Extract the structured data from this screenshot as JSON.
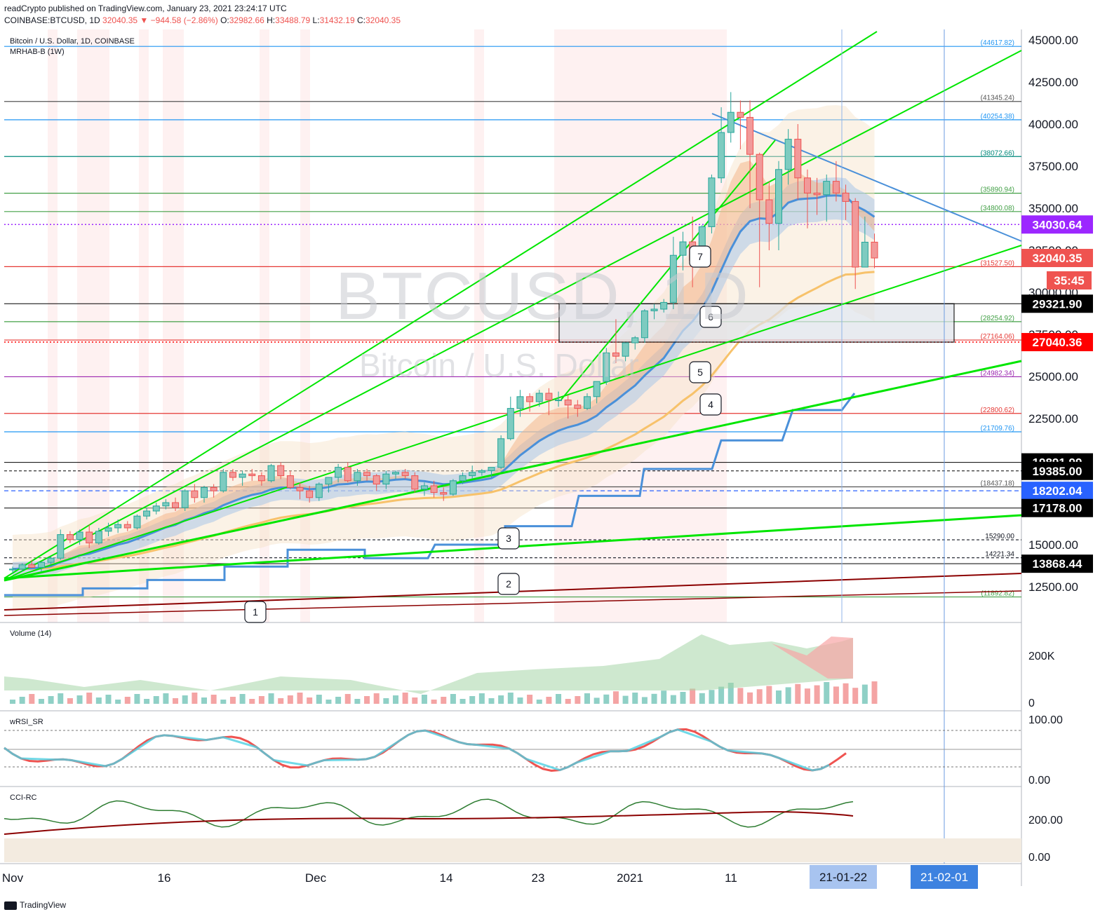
{
  "header": {
    "publisher": "readCrypto published on TradingView.com, January 23, 2021 23:24:17 UTC",
    "symbol": "COINBASE:BTCUSD, 1D",
    "change": "32040.35 ▼ −944.58 (−2.86%)",
    "o_label": "O:",
    "o_value": "32982.66",
    "h_label": "H:",
    "h_value": "33488.79",
    "l_label": "L:",
    "l_value": "31432.19",
    "c_label": "C:",
    "c_value": "32040.35"
  },
  "legend": {
    "title": "Bitcoin / U.S. Dollar, 1D, COINBASE",
    "indicator": "MRHAB-B (1W)"
  },
  "watermark": {
    "ticker": "BTCUSD, 1D",
    "name": "Bitcoin / U.S. Dollar"
  },
  "panes": {
    "volume": "Volume (14)",
    "rsi": "wRSI_SR",
    "cci": "CCI-RC"
  },
  "footer": {
    "brand": "TradingView"
  },
  "colors": {
    "up": "#26a69a",
    "down": "#ef5350",
    "green_line": "#00e600",
    "blue_line": "#4a90d9",
    "orange_line": "#f7c26b",
    "dark_red": "#8b0000",
    "purple": "#9c27b0",
    "red_level": "#e53935"
  },
  "chart_data": {
    "type": "candlestick",
    "y_axis": {
      "ylim": [
        10000,
        46000
      ],
      "ticks": [
        12500,
        15000,
        17500,
        20000,
        22500,
        25000,
        27500,
        30000,
        32500,
        35000,
        37500,
        40000,
        42500,
        45000
      ],
      "tick_labels": [
        "12500.00",
        "15000.00",
        "17500.00",
        "20000.00",
        "22500.00",
        "25000.00",
        "27500.00",
        "30000.00",
        "32500.00",
        "35000.00",
        "37500.00",
        "40000.00",
        "42500.00",
        "45000.00"
      ]
    },
    "x_axis": {
      "labels": [
        "Nov",
        "16",
        "Dec",
        "14",
        "23",
        "2021",
        "11"
      ],
      "highlight": [
        "21-01-22",
        "21-02-01"
      ]
    },
    "level_labels": [
      {
        "text": "(44617.82)",
        "value": 44617.82,
        "color": "#2196f3"
      },
      {
        "text": "(41345.24)",
        "value": 41345.24,
        "color": "#555555"
      },
      {
        "text": "(40254.38)",
        "value": 40254.38,
        "color": "#2196f3"
      },
      {
        "text": "(38072.66)",
        "value": 38072.66,
        "color": "#00897b"
      },
      {
        "text": "(35890.94)",
        "value": 35890.94,
        "color": "#43a047"
      },
      {
        "text": "(34800.08)",
        "value": 34800.08,
        "color": "#43a047"
      },
      {
        "text": "(31527.50)",
        "value": 31527.5,
        "color": "#e53935"
      },
      {
        "text": "(28254.92)",
        "value": 28254.92,
        "color": "#43a047"
      },
      {
        "text": "(27164.06)",
        "value": 27164.06,
        "color": "#e53935"
      },
      {
        "text": "(24982.34)",
        "value": 24982.34,
        "color": "#9c27b0"
      },
      {
        "text": "(22800.62)",
        "value": 22800.62,
        "color": "#e53935"
      },
      {
        "text": "(21709.76)",
        "value": 21709.76,
        "color": "#2196f3"
      },
      {
        "text": "(18437.18)",
        "value": 18437.18,
        "color": "#555555"
      },
      {
        "text": "15290.00",
        "value": 15290.0,
        "color": "#131722"
      },
      {
        "text": "14221.34",
        "value": 14221.34,
        "color": "#131722"
      },
      {
        "text": "(11892.82)",
        "value": 11892.82,
        "color": "#43a047"
      }
    ],
    "price_tags": [
      {
        "text": "34030.64",
        "value": 34030.64,
        "bg": "#9c27ff",
        "fg": "#ffffff"
      },
      {
        "text": "32040.35",
        "value": 32040.35,
        "bg": "#ef5350",
        "fg": "#ffffff"
      },
      {
        "text": "35:45",
        "value": 30850,
        "bg": "#ef5350",
        "fg": "#ffffff"
      },
      {
        "text": "29321.90",
        "value": 29321.9,
        "bg": "#000000",
        "fg": "#ffffff"
      },
      {
        "text": "27040.36",
        "value": 27040.36,
        "bg": "#ff0000",
        "fg": "#ffffff"
      },
      {
        "text": "19891.99",
        "value": 19891.99,
        "bg": "#000000",
        "fg": "#ffffff"
      },
      {
        "text": "19385.00",
        "value": 19385.0,
        "bg": "#000000",
        "fg": "#ffffff"
      },
      {
        "text": "18202.04",
        "value": 18202.04,
        "bg": "#2962ff",
        "fg": "#ffffff"
      },
      {
        "text": "17178.00",
        "value": 17178.0,
        "bg": "#000000",
        "fg": "#ffffff"
      },
      {
        "text": "13868.44",
        "value": 13868.44,
        "bg": "#000000",
        "fg": "#ffffff"
      }
    ],
    "candles": [
      [
        13500,
        13700,
        13300,
        13550
      ],
      [
        13550,
        13900,
        13400,
        13800
      ],
      [
        13800,
        14100,
        13600,
        13650
      ],
      [
        13650,
        14000,
        13400,
        13950
      ],
      [
        13950,
        14300,
        13800,
        14200
      ],
      [
        14200,
        15900,
        14100,
        15600
      ],
      [
        15600,
        15800,
        15100,
        15300
      ],
      [
        15300,
        15900,
        15000,
        15750
      ],
      [
        15750,
        16200,
        14800,
        15100
      ],
      [
        15100,
        16000,
        15000,
        15800
      ],
      [
        15800,
        16300,
        15500,
        16000
      ],
      [
        16000,
        16500,
        15700,
        16200
      ],
      [
        16200,
        16400,
        15800,
        16000
      ],
      [
        16000,
        16800,
        15900,
        16700
      ],
      [
        16700,
        17200,
        16500,
        17000
      ],
      [
        17000,
        17500,
        16800,
        17300
      ],
      [
        17300,
        17700,
        17100,
        17500
      ],
      [
        17500,
        17800,
        17000,
        17200
      ],
      [
        17200,
        18300,
        17000,
        18200
      ],
      [
        18200,
        18600,
        17500,
        17800
      ],
      [
        17800,
        18500,
        17500,
        18400
      ],
      [
        18400,
        18600,
        17800,
        18200
      ],
      [
        18200,
        19500,
        18100,
        19300
      ],
      [
        19300,
        19500,
        18800,
        19000
      ],
      [
        19000,
        19400,
        18500,
        19200
      ],
      [
        19200,
        19500,
        18800,
        19100
      ],
      [
        19100,
        19300,
        18500,
        18800
      ],
      [
        18800,
        19800,
        18700,
        19700
      ],
      [
        19700,
        19900,
        18900,
        19100
      ],
      [
        19100,
        19400,
        18300,
        18400
      ],
      [
        18400,
        18700,
        17700,
        18200
      ],
      [
        18200,
        18500,
        17500,
        17800
      ],
      [
        17800,
        18700,
        17600,
        18600
      ],
      [
        18600,
        19000,
        18100,
        19000
      ],
      [
        19000,
        19800,
        18700,
        19600
      ],
      [
        19600,
        19900,
        18700,
        18800
      ],
      [
        18800,
        19500,
        18500,
        19300
      ],
      [
        19300,
        19500,
        18800,
        19100
      ],
      [
        19100,
        19200,
        18200,
        18600
      ],
      [
        18600,
        19400,
        18300,
        19200
      ],
      [
        19200,
        19400,
        18900,
        19300
      ],
      [
        19300,
        19500,
        18900,
        19100
      ],
      [
        19100,
        19300,
        18100,
        18300
      ],
      [
        18300,
        18700,
        17900,
        18500
      ],
      [
        18500,
        18800,
        17800,
        18100
      ],
      [
        18100,
        18400,
        17600,
        18000
      ],
      [
        18000,
        18900,
        17900,
        18800
      ],
      [
        18800,
        19300,
        18600,
        19100
      ],
      [
        19100,
        19700,
        18900,
        19300
      ],
      [
        19300,
        19500,
        19100,
        19400
      ],
      [
        19400,
        19600,
        19000,
        19600
      ],
      [
        19600,
        21500,
        19500,
        21300
      ],
      [
        21300,
        23800,
        21200,
        23100
      ],
      [
        23100,
        24200,
        22600,
        23800
      ],
      [
        23800,
        24000,
        22900,
        23500
      ],
      [
        23500,
        24200,
        23200,
        24000
      ],
      [
        24000,
        24300,
        22700,
        23600
      ],
      [
        23600,
        24100,
        23200,
        23600
      ],
      [
        23600,
        23900,
        22500,
        23300
      ],
      [
        23300,
        23600,
        22600,
        23100
      ],
      [
        23100,
        24000,
        23000,
        23800
      ],
      [
        23800,
        24500,
        23400,
        24700
      ],
      [
        24700,
        26700,
        24500,
        26400
      ],
      [
        26400,
        28400,
        25800,
        26200
      ],
      [
        26200,
        27000,
        25900,
        27000
      ],
      [
        27000,
        27400,
        26600,
        27300
      ],
      [
        27300,
        29000,
        27000,
        28900
      ],
      [
        28900,
        29300,
        28400,
        29000
      ],
      [
        29000,
        29600,
        28800,
        29400
      ],
      [
        29400,
        33300,
        29000,
        32200
      ],
      [
        32200,
        33600,
        31300,
        33000
      ],
      [
        33000,
        34500,
        30300,
        31900
      ],
      [
        31900,
        34000,
        31500,
        33900
      ],
      [
        33900,
        37000,
        33500,
        36800
      ],
      [
        36800,
        41000,
        36500,
        39500
      ],
      [
        39500,
        41900,
        38900,
        40700
      ],
      [
        40700,
        41400,
        38500,
        40400
      ],
      [
        40400,
        41400,
        35000,
        38200
      ],
      [
        38200,
        38300,
        30300,
        35500
      ],
      [
        35500,
        36600,
        32500,
        34100
      ],
      [
        34100,
        37800,
        32500,
        37300
      ],
      [
        37300,
        39700,
        36400,
        39100
      ],
      [
        39100,
        40000,
        35500,
        36800
      ],
      [
        36800,
        37300,
        33800,
        35900
      ],
      [
        35900,
        36800,
        34600,
        35800
      ],
      [
        35800,
        37000,
        34200,
        36600
      ],
      [
        36600,
        37800,
        35400,
        35900
      ],
      [
        35900,
        36400,
        34300,
        35400
      ],
      [
        35400,
        35600,
        30200,
        31500
      ],
      [
        31500,
        34500,
        31500,
        32980
      ],
      [
        32982.66,
        33488.79,
        31432.19,
        32040.35
      ]
    ],
    "zone": {
      "from": 27040.36,
      "to": 29321.9
    }
  }
}
